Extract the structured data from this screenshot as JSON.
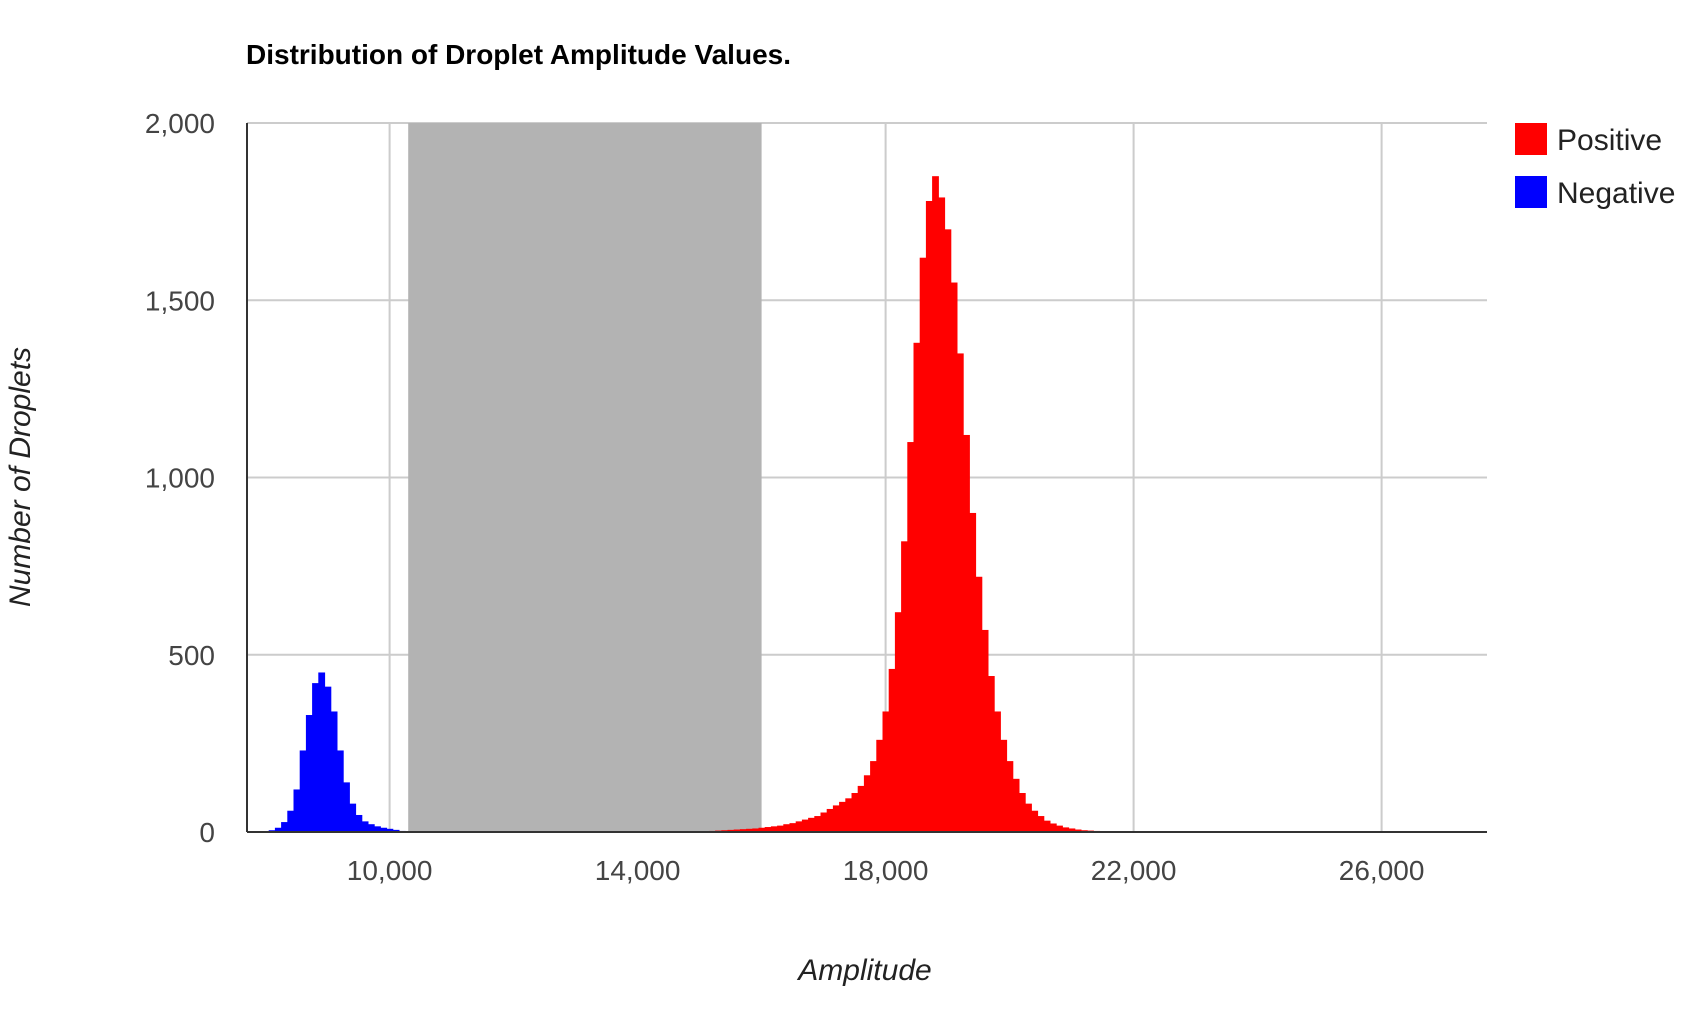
{
  "chart_data": {
    "type": "bar",
    "title": "Distribution of Droplet Amplitude Values.",
    "xlabel": "Amplitude",
    "ylabel": "Number of Droplets",
    "xlim": [
      7700,
      27700
    ],
    "ylim": [
      0,
      2000
    ],
    "x_ticks": [
      10000,
      14000,
      18000,
      22000,
      26000
    ],
    "x_tick_labels": [
      "10,000",
      "14,000",
      "18,000",
      "22,000",
      "26,000"
    ],
    "y_ticks": [
      0,
      500,
      1000,
      1500,
      2000
    ],
    "y_tick_labels": [
      "0",
      "500",
      "1,000",
      "1,500",
      "2,000"
    ],
    "grid": true,
    "legend_position": "top-right",
    "bin_width": 100,
    "threshold_band": [
      10300,
      16000
    ],
    "threshold_band_color": "#b3b3b3",
    "series": [
      {
        "name": "Positive",
        "color": "#ff0000",
        "x": [
          15200,
          15300,
          15400,
          15500,
          15600,
          15700,
          15800,
          15900,
          16000,
          16100,
          16200,
          16300,
          16400,
          16500,
          16600,
          16700,
          16800,
          16900,
          17000,
          17100,
          17200,
          17300,
          17400,
          17500,
          17600,
          17700,
          17800,
          17900,
          18000,
          18100,
          18200,
          18300,
          18400,
          18500,
          18600,
          18700,
          18800,
          18900,
          19000,
          19100,
          19200,
          19300,
          19400,
          19500,
          19600,
          19700,
          19800,
          19900,
          20000,
          20100,
          20200,
          20300,
          20400,
          20500,
          20600,
          20700,
          20800,
          20900,
          21000,
          21100,
          21200,
          21300,
          21400,
          21500,
          21600
        ],
        "values": [
          3,
          4,
          5,
          6,
          7,
          8,
          9,
          10,
          12,
          14,
          16,
          18,
          22,
          25,
          30,
          35,
          40,
          45,
          55,
          65,
          75,
          85,
          95,
          110,
          130,
          160,
          200,
          260,
          340,
          460,
          620,
          820,
          1100,
          1380,
          1620,
          1780,
          1850,
          1790,
          1700,
          1550,
          1350,
          1120,
          900,
          720,
          570,
          440,
          340,
          260,
          200,
          150,
          110,
          80,
          60,
          45,
          32,
          24,
          18,
          13,
          10,
          7,
          5,
          4,
          3,
          2,
          1
        ]
      },
      {
        "name": "Negative",
        "color": "#0000ff",
        "x": [
          8100,
          8200,
          8300,
          8400,
          8500,
          8600,
          8700,
          8800,
          8900,
          9000,
          9100,
          9200,
          9300,
          9400,
          9500,
          9600,
          9700,
          9800,
          9900,
          10000,
          10100,
          10200
        ],
        "values": [
          5,
          12,
          28,
          60,
          120,
          230,
          330,
          420,
          450,
          410,
          340,
          230,
          140,
          80,
          48,
          30,
          22,
          16,
          12,
          9,
          6,
          3
        ]
      }
    ]
  }
}
